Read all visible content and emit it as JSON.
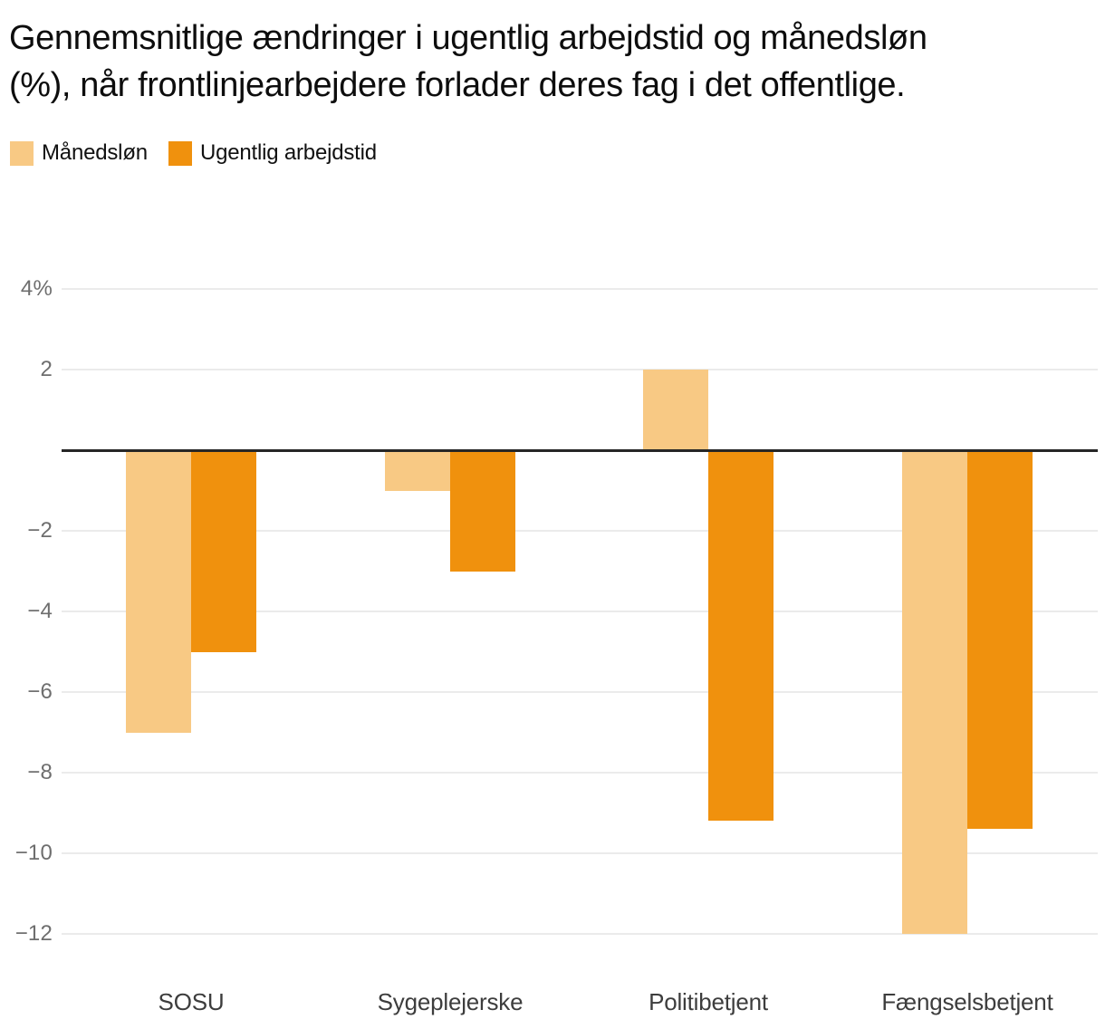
{
  "page": {
    "background": "#ffffff"
  },
  "chart_data": {
    "type": "bar",
    "title": "Gennemsnitlige ændringer i ugentlig arbejdstid og månedsløn (%), når frontlinjearbejdere forlader deres fag i det offentlige.",
    "title_lines": [
      "Gennemsnitlige ændringer i ugentlig arbejdstid og månedsløn",
      "(%), når frontlinjearbejdere forlader deres fag i det offentlige."
    ],
    "categories": [
      "SOSU",
      "Sygeplejerske",
      "Politibetjent",
      "Fængselsbetjent"
    ],
    "series": [
      {
        "name": "Månedsløn",
        "color": "#f8c984",
        "values": [
          -7,
          -1,
          2,
          -12
        ]
      },
      {
        "name": "Ugentlig arbejdstid",
        "color": "#f0910d",
        "values": [
          -5,
          -3,
          -9.2,
          -9.4
        ]
      }
    ],
    "xlabel": "",
    "ylabel": "",
    "ylim": [
      -12.8,
      4.6
    ],
    "grid": true,
    "legend_position": "top-left",
    "yticks": [
      {
        "value": 4,
        "label": "4%"
      },
      {
        "value": 2,
        "label": "2"
      },
      {
        "value": -2,
        "label": "−2"
      },
      {
        "value": -4,
        "label": "−4"
      },
      {
        "value": -6,
        "label": "−6"
      },
      {
        "value": -8,
        "label": "−8"
      },
      {
        "value": -10,
        "label": "−10"
      },
      {
        "value": -12,
        "label": "−12"
      }
    ],
    "zero_line": {
      "value": 0,
      "color": "#262626"
    },
    "colors": {
      "gridline": "#ebebeb",
      "tick_label": "#6e6e6e",
      "category_label": "#3d3d3d",
      "title": "#0d0d0d",
      "legend_text": "#111111"
    }
  }
}
